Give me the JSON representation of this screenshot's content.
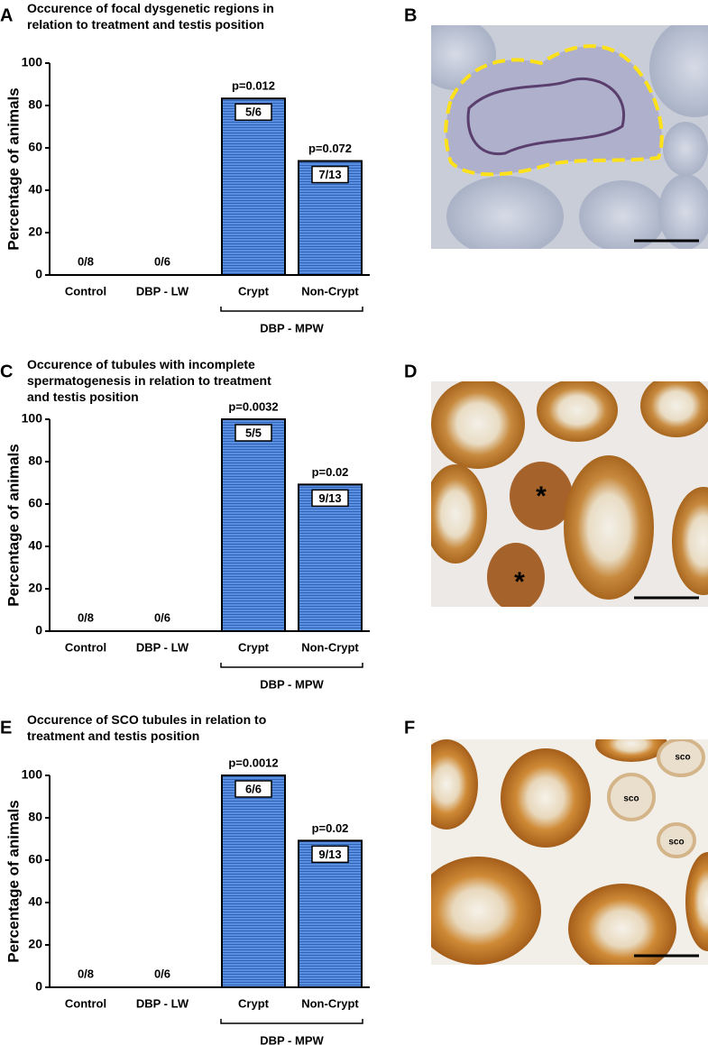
{
  "panels": [
    "A",
    "B",
    "C",
    "D",
    "E",
    "F"
  ],
  "d_labels": [
    "*",
    "*"
  ],
  "f_labels": [
    "sco",
    "sco",
    "sco"
  ],
  "chart_data": [
    {
      "type": "bar",
      "title": [
        "Occurence of focal dysgenetic regions in",
        "relation to treatment and testis position"
      ],
      "y_label": "Percentage of animals",
      "categories": [
        "Control",
        "DBP - LW",
        "Crypt",
        "Non-Crypt"
      ],
      "values": [
        0,
        0,
        83.3,
        53.8
      ],
      "value_labels": [
        "0/8",
        "0/6",
        "5/6",
        "7/13"
      ],
      "p_values": [
        null,
        null,
        "p=0.012",
        "p=0.072"
      ],
      "group_label": "DBP - MPW",
      "color": "#4a7fd0",
      "ylim": [
        0,
        100
      ],
      "yticks": [
        0,
        20,
        40,
        60,
        80,
        100
      ]
    },
    {
      "type": "bar",
      "title": [
        "Occurence of tubules with incomplete",
        "spermatogenesis in relation to treatment",
        "and testis position"
      ],
      "y_label": "Percentage of animals",
      "categories": [
        "Control",
        "DBP - LW",
        "Crypt",
        "Non-Crypt"
      ],
      "values": [
        0,
        0,
        100,
        69.2
      ],
      "value_labels": [
        "0/8",
        "0/6",
        "5/5",
        "9/13"
      ],
      "p_values": [
        null,
        null,
        "p=0.0032",
        "p=0.02"
      ],
      "group_label": "DBP - MPW",
      "color": "#4a7fd0",
      "ylim": [
        0,
        100
      ],
      "yticks": [
        0,
        20,
        40,
        60,
        80,
        100
      ]
    },
    {
      "type": "bar",
      "title": [
        "Occurence of SCO tubules in relation to",
        "treatment and testis position"
      ],
      "y_label": "Percentage of animals",
      "categories": [
        "Control",
        "DBP - LW",
        "Crypt",
        "Non-Crypt"
      ],
      "values": [
        0,
        0,
        100,
        69.2
      ],
      "value_labels": [
        "0/8",
        "0/6",
        "6/6",
        "9/13"
      ],
      "p_values": [
        null,
        null,
        "p=0.0012",
        "p=0.02"
      ],
      "group_label": "DBP - MPW",
      "color": "#4a7fd0",
      "ylim": [
        0,
        100
      ],
      "yticks": [
        0,
        20,
        40,
        60,
        80,
        100
      ]
    }
  ]
}
